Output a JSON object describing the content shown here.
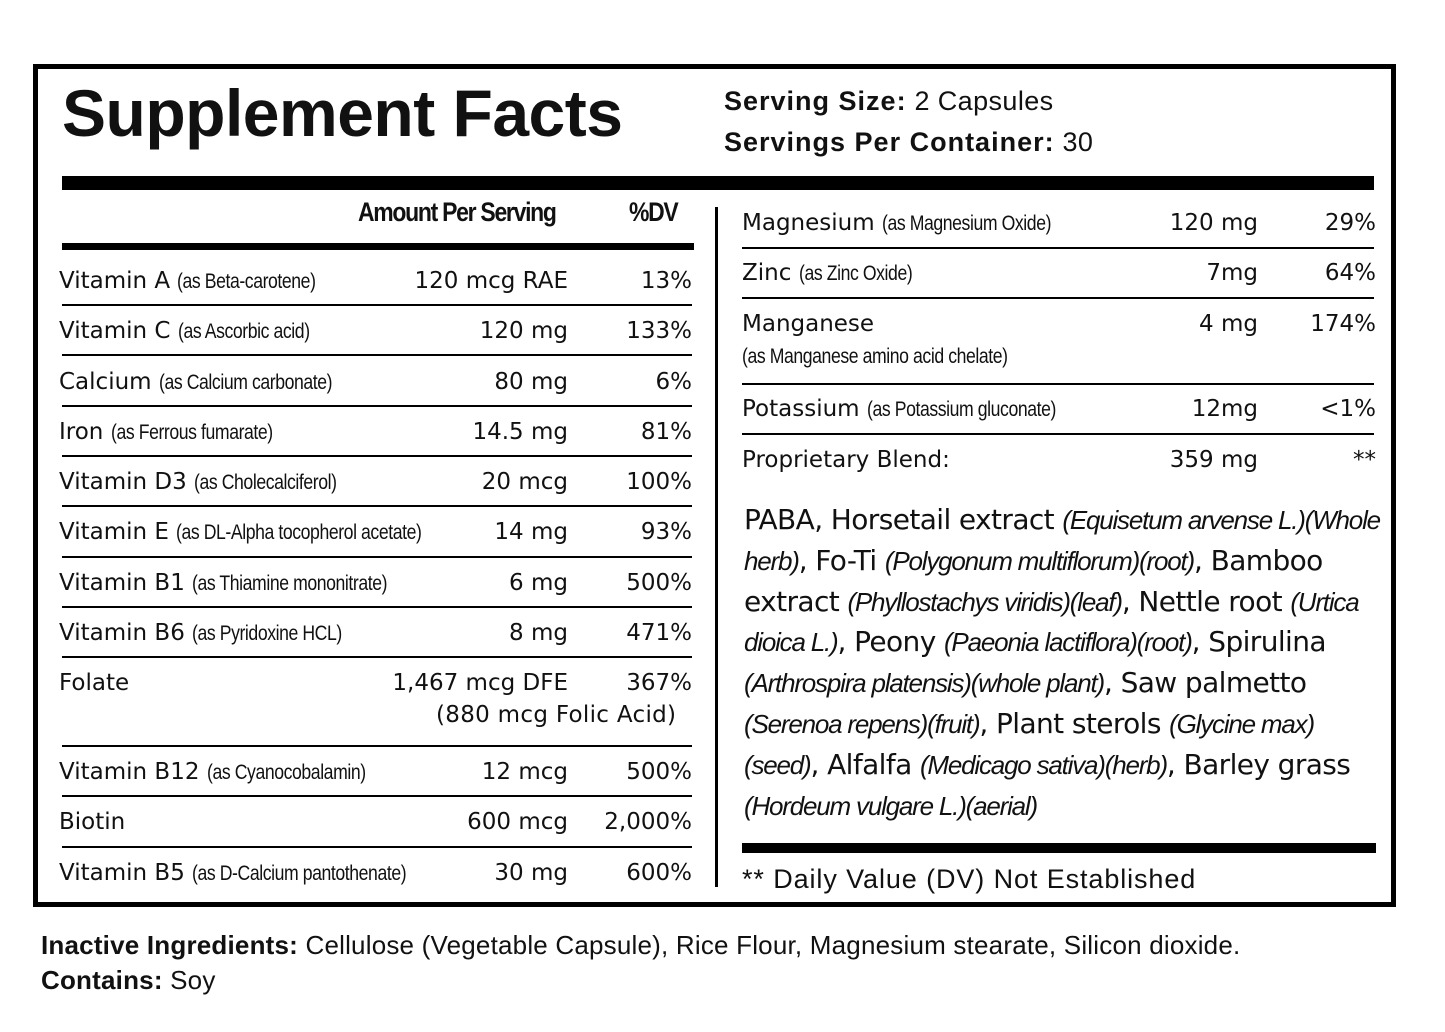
{
  "label": {
    "title": "Supplement Facts",
    "serving_size_label": "Serving Size:",
    "serving_size_value": "2 Capsules",
    "servings_per_container_label": "Servings Per Container:",
    "servings_per_container_value": "30",
    "amount_per_serving_header": "Amount Per Serving",
    "dv_header": "%DV"
  },
  "left_nutrients": [
    {
      "name": "Vitamin A",
      "source": "(as Beta-carotene)",
      "amount": "120 mcg RAE",
      "dv": "13%"
    },
    {
      "name": "Vitamin C",
      "source": "(as Ascorbic acid)",
      "amount": "120 mg",
      "dv": "133%"
    },
    {
      "name": "Calcium",
      "source": "(as Calcium carbonate)",
      "amount": "80 mg",
      "dv": "6%"
    },
    {
      "name": "Iron",
      "source": "(as Ferrous fumarate)",
      "amount": "14.5 mg",
      "dv": "81%"
    },
    {
      "name": "Vitamin D3",
      "source": "(as Cholecalciferol)",
      "amount": "20 mcg",
      "dv": "100%"
    },
    {
      "name": "Vitamin E",
      "source": "(as DL-Alpha tocopherol acetate)",
      "amount": "14 mg",
      "dv": "93%"
    },
    {
      "name": "Vitamin B1",
      "source": "(as Thiamine mononitrate)",
      "amount": "6 mg",
      "dv": "500%"
    },
    {
      "name": "Vitamin B6",
      "source": "(as Pyridoxine HCL)",
      "amount": "8 mg",
      "dv": "471%"
    },
    {
      "name": "Folate",
      "source": "",
      "amount": "1,467 mcg DFE",
      "dv": "367%",
      "note": "(880 mcg Folic Acid)"
    },
    {
      "name": "Vitamin B12",
      "source": "(as Cyanocobalamin)",
      "amount": "12 mcg",
      "dv": "500%"
    },
    {
      "name": "Biotin",
      "source": "",
      "amount": "600 mcg",
      "dv": "2,000%"
    },
    {
      "name": "Vitamin B5",
      "source": "(as D-Calcium pantothenate)",
      "amount": "30 mg",
      "dv": "600%"
    }
  ],
  "right_nutrients": [
    {
      "name": "Magnesium",
      "source": "(as Magnesium Oxide)",
      "amount": "120 mg",
      "dv": "29%"
    },
    {
      "name": "Zinc",
      "source": "(as Zinc Oxide)",
      "amount": "7mg",
      "dv": "64%"
    },
    {
      "name": "Manganese",
      "source": "(as Manganese amino acid chelate)",
      "amount": "4 mg",
      "dv": "174%"
    },
    {
      "name": "Potassium",
      "source": "(as Potassium gluconate)",
      "amount": "12mg",
      "dv": "<1%"
    },
    {
      "name": "Proprietary Blend:",
      "source": "",
      "amount": "359 mg",
      "dv": "**"
    }
  ],
  "blend": {
    "parts": [
      {
        "t": "PABA, Horsetail extract ",
        "i": false
      },
      {
        "t": "(Equisetum arvense L.)(Whole herb)",
        "i": true
      },
      {
        "t": ", Fo-Ti ",
        "i": false
      },
      {
        "t": "(Polygonum multiflorum)(root)",
        "i": true
      },
      {
        "t": ", Bamboo extract ",
        "i": false
      },
      {
        "t": "(Phyllostachys viridis)(leaf)",
        "i": true
      },
      {
        "t": ", Nettle root ",
        "i": false
      },
      {
        "t": "(Urtica dioica L.)",
        "i": true
      },
      {
        "t": ",  Peony ",
        "i": false
      },
      {
        "t": "(Paeonia lactiflora)(root)",
        "i": true
      },
      {
        "t": ", Spirulina ",
        "i": false
      },
      {
        "t": "(Arthrospira platensis)(whole plant)",
        "i": true
      },
      {
        "t": ", Saw palmetto ",
        "i": false
      },
      {
        "t": "(Serenoa repens)(fruit)",
        "i": true
      },
      {
        "t": ", Plant sterols ",
        "i": false
      },
      {
        "t": "(Glycine max)(seed)",
        "i": true
      },
      {
        "t": ", Alfalfa ",
        "i": false
      },
      {
        "t": "(Medicago sativa)(herb)",
        "i": true
      },
      {
        "t": ", Barley grass ",
        "i": false
      },
      {
        "t": "(Hordeum vulgare L.)(aerial)",
        "i": true
      }
    ]
  },
  "footnote": "** Daily Value (DV) Not Established",
  "inactive": {
    "label": "Inactive Ingredients:",
    "value": " Cellulose (Vegetable Capsule), Rice Flour, Magnesium stearate, Silicon dioxide."
  },
  "contains": {
    "label": "Contains:",
    "value": " Soy"
  }
}
